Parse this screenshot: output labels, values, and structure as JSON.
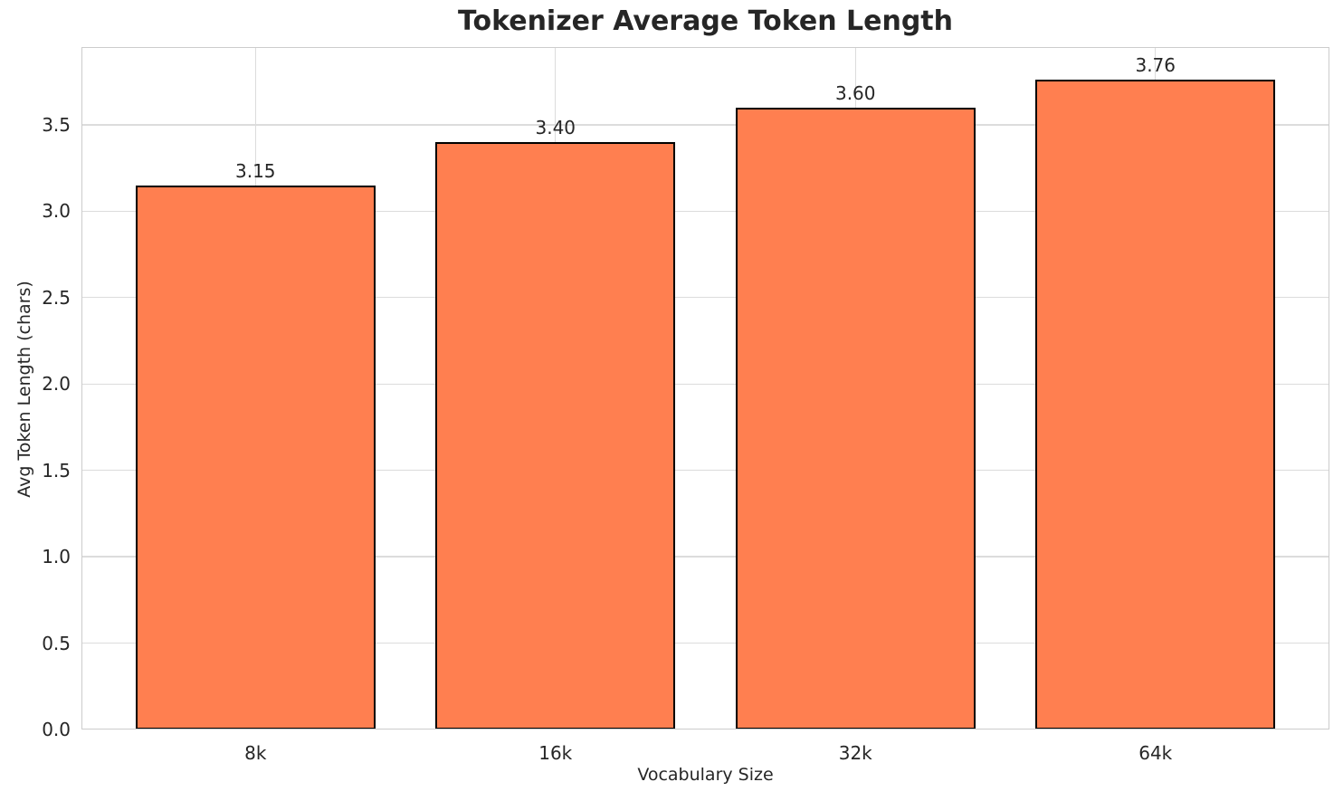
{
  "chart_data": {
    "type": "bar",
    "title": "Tokenizer Average Token Length",
    "xlabel": "Vocabulary Size",
    "ylabel": "Avg Token Length (chars)",
    "categories": [
      "8k",
      "16k",
      "32k",
      "64k"
    ],
    "values": [
      3.15,
      3.4,
      3.6,
      3.76
    ],
    "value_labels": [
      "3.15",
      "3.40",
      "3.60",
      "3.76"
    ],
    "ytick_values": [
      0.0,
      0.5,
      1.0,
      1.5,
      2.0,
      2.5,
      3.0,
      3.5
    ],
    "ytick_labels": [
      "0.0",
      "0.5",
      "1.0",
      "1.5",
      "2.0",
      "2.5",
      "3.0",
      "3.5"
    ],
    "ylim": [
      0,
      3.95
    ],
    "xlim": [
      -0.58,
      3.58
    ],
    "bar_width": 0.8,
    "grid": true,
    "legend": "none",
    "colors": {
      "bar_fill": "#FF7F50",
      "bar_edge": "#000000",
      "grid": "#dcdcdc",
      "spine": "#cccccc",
      "text": "#262626",
      "background": "#ffffff"
    }
  }
}
